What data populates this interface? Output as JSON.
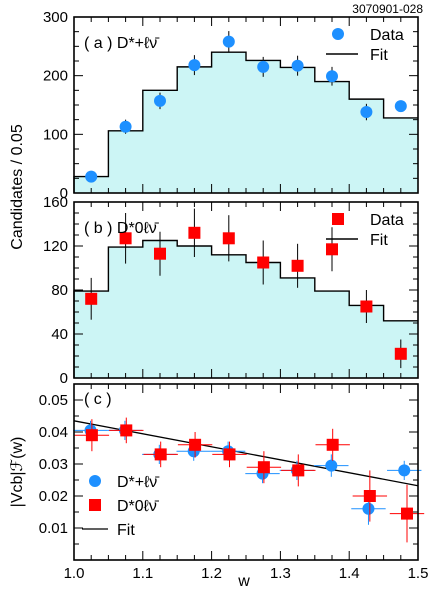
{
  "figure": {
    "id_label": "3070901-028",
    "shared_xlabel": "w",
    "shared_ylabel_top": "Candidates / 0.05"
  },
  "chart_data": [
    {
      "type": "histogram+scatter",
      "panel_label": "( a ) D*+ℓν̄",
      "legend": {
        "data": "Data",
        "fit": "Fit"
      },
      "marker": "circle",
      "color": "#1e90ff",
      "fill": "#ccf5f5",
      "xlim": [
        1.0,
        1.5
      ],
      "ylim": [
        0,
        300
      ],
      "yticks": [
        0,
        100,
        200,
        300
      ],
      "bin_edges": [
        1.0,
        1.05,
        1.1,
        1.15,
        1.2,
        1.25,
        1.3,
        1.35,
        1.4,
        1.45,
        1.5
      ],
      "fit_values": [
        28,
        106,
        175,
        215,
        240,
        226,
        214,
        190,
        160,
        128
      ],
      "points": [
        {
          "x": 1.025,
          "y": 28,
          "err": 0
        },
        {
          "x": 1.075,
          "y": 113,
          "err": 12
        },
        {
          "x": 1.125,
          "y": 157,
          "err": 14
        },
        {
          "x": 1.175,
          "y": 218,
          "err": 17
        },
        {
          "x": 1.225,
          "y": 258,
          "err": 18
        },
        {
          "x": 1.275,
          "y": 215,
          "err": 17
        },
        {
          "x": 1.325,
          "y": 217,
          "err": 17
        },
        {
          "x": 1.375,
          "y": 199,
          "err": 16
        },
        {
          "x": 1.425,
          "y": 138,
          "err": 14
        },
        {
          "x": 1.475,
          "y": 148,
          "err": 0
        }
      ]
    },
    {
      "type": "histogram+scatter",
      "panel_label": "( b ) D*0ℓν̄",
      "legend": {
        "data": "Data",
        "fit": "Fit"
      },
      "marker": "square",
      "color": "#ff0000",
      "fill": "#ccf5f5",
      "xlim": [
        1.0,
        1.5
      ],
      "ylim": [
        0,
        160
      ],
      "yticks": [
        0,
        40,
        80,
        120,
        160
      ],
      "bin_edges": [
        1.0,
        1.05,
        1.1,
        1.15,
        1.2,
        1.25,
        1.3,
        1.35,
        1.4,
        1.45,
        1.5
      ],
      "fit_values": [
        79,
        119,
        125,
        120,
        112,
        105,
        91,
        79,
        66,
        52
      ],
      "points": [
        {
          "x": 1.025,
          "y": 72,
          "err": 19
        },
        {
          "x": 1.075,
          "y": 127,
          "err": 23
        },
        {
          "x": 1.125,
          "y": 113,
          "err": 20
        },
        {
          "x": 1.175,
          "y": 132,
          "err": 22
        },
        {
          "x": 1.225,
          "y": 127,
          "err": 21
        },
        {
          "x": 1.275,
          "y": 105,
          "err": 20
        },
        {
          "x": 1.325,
          "y": 102,
          "err": 20
        },
        {
          "x": 1.375,
          "y": 117,
          "err": 20
        },
        {
          "x": 1.425,
          "y": 65,
          "err": 15
        },
        {
          "x": 1.475,
          "y": 22,
          "err": 13
        }
      ]
    },
    {
      "type": "scatter+line",
      "panel_label": "( c )",
      "ylabel": "|Vcb|ℱ(w)",
      "xlabel": "w",
      "xlim": [
        1.0,
        1.5
      ],
      "ylim": [
        0,
        0.055
      ],
      "xticks": [
        1.0,
        1.1,
        1.2,
        1.3,
        1.4,
        1.5
      ],
      "yticks": [
        0.01,
        0.02,
        0.03,
        0.04,
        0.05
      ],
      "legend": [
        {
          "marker": "circle",
          "label": "D*+ℓν̄",
          "color": "#1e90ff"
        },
        {
          "marker": "square",
          "label": "D*0ℓν̄",
          "color": "#ff0000"
        },
        {
          "marker": "line",
          "label": "Fit"
        }
      ],
      "fit_line": {
        "x": [
          1.0,
          1.5
        ],
        "y": [
          0.0435,
          0.0232
        ]
      },
      "series": [
        {
          "name": "D*+ℓν̄",
          "marker": "circle",
          "color": "#1e90ff",
          "points": [
            {
              "x": 1.024,
              "y": 0.0405,
              "yerr": 0.003
            },
            {
              "x": 1.074,
              "y": 0.0405,
              "yerr": 0.003
            },
            {
              "x": 1.124,
              "y": 0.033,
              "yerr": 0.003
            },
            {
              "x": 1.174,
              "y": 0.034,
              "yerr": 0.003
            },
            {
              "x": 1.224,
              "y": 0.034,
              "yerr": 0.003
            },
            {
              "x": 1.274,
              "y": 0.027,
              "yerr": 0.003
            },
            {
              "x": 1.324,
              "y": 0.028,
              "yerr": 0.003
            },
            {
              "x": 1.374,
              "y": 0.0295,
              "yerr": 0.0035
            },
            {
              "x": 1.428,
              "y": 0.016,
              "yerr": 0.005
            },
            {
              "x": 1.48,
              "y": 0.028,
              "yerr": 0.003
            }
          ]
        },
        {
          "name": "D*0ℓν̄",
          "marker": "square",
          "color": "#ff0000",
          "points": [
            {
              "x": 1.026,
              "y": 0.039,
              "yerr": 0.005
            },
            {
              "x": 1.076,
              "y": 0.0405,
              "yerr": 0.004
            },
            {
              "x": 1.126,
              "y": 0.033,
              "yerr": 0.004
            },
            {
              "x": 1.176,
              "y": 0.036,
              "yerr": 0.004
            },
            {
              "x": 1.226,
              "y": 0.033,
              "yerr": 0.004
            },
            {
              "x": 1.276,
              "y": 0.029,
              "yerr": 0.005
            },
            {
              "x": 1.326,
              "y": 0.028,
              "yerr": 0.005
            },
            {
              "x": 1.376,
              "y": 0.036,
              "yerr": 0.005
            },
            {
              "x": 1.43,
              "y": 0.02,
              "yerr": 0.008
            },
            {
              "x": 1.484,
              "y": 0.0145,
              "yerr": 0.009
            }
          ]
        }
      ]
    }
  ]
}
